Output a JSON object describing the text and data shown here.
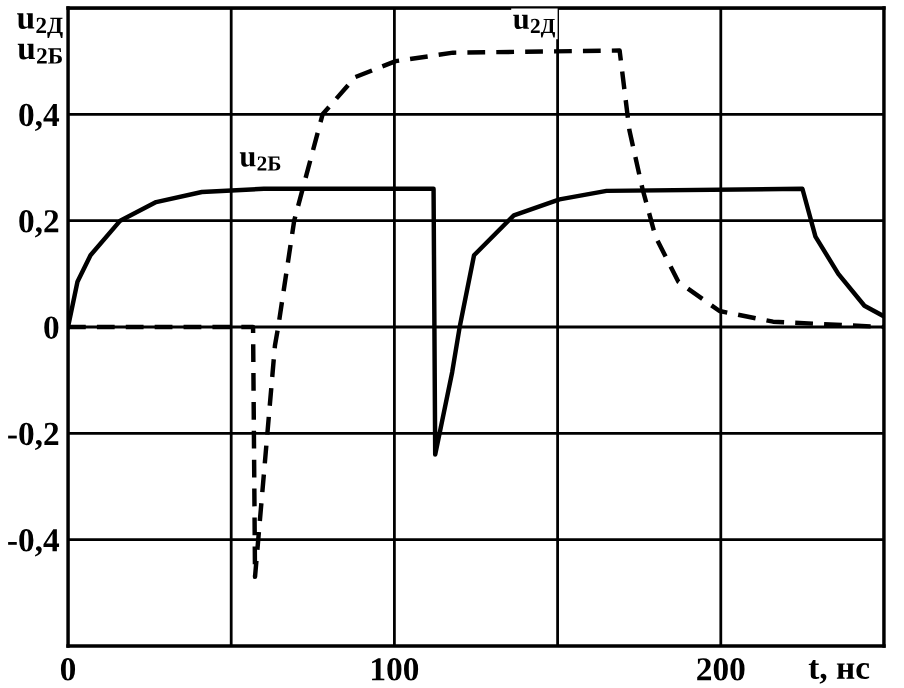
{
  "chart_data": {
    "type": "line",
    "xlabel": "t, нс",
    "ylabel": "u$_{2Д}$\nu$_{2Б}$",
    "xlim": [
      0,
      250
    ],
    "ylim": [
      -0.6,
      0.6
    ],
    "xticks": [
      0,
      {
        "value": 50,
        "label": null
      },
      100,
      {
        "value": 150,
        "label": null
      },
      200,
      {
        "value": 250,
        "label": null
      }
    ],
    "yticks": [
      {
        "value": -0.4,
        "label": "-0,4"
      },
      {
        "value": -0.2,
        "label": "-0,2"
      },
      0,
      {
        "value": 0.2,
        "label": "0,2"
      },
      {
        "value": 0.4,
        "label": "0,4"
      },
      {
        "value": 0.6,
        "label": null
      }
    ],
    "grid": true,
    "legend": false,
    "series": [
      {
        "color": "#000000",
        "line_style": "solid",
        "x": [
          0,
          2.9,
          6.9,
          16,
          27,
          41,
          60,
          112,
          112.5,
          117.7,
          120,
          124.4,
          136.6,
          150.6,
          165,
          225,
          229,
          236,
          244,
          250
        ],
        "values": [
          0,
          0.085,
          0.135,
          0.2,
          0.235,
          0.254,
          0.26,
          0.26,
          -0.24,
          -0.085,
          0,
          0.135,
          0.21,
          0.24,
          0.256,
          0.26,
          0.17,
          0.1,
          0.04,
          0.02
        ]
      },
      {
        "color": "#000000",
        "line_style": "dashed",
        "x": [
          0,
          56.7,
          57.3,
          63.4,
          64.4,
          69.3,
          78,
          88,
          100.4,
          118,
          169,
          172,
          176,
          180,
          187,
          199.6,
          216,
          250
        ],
        "values": [
          0,
          0,
          -0.47,
          -0.035,
          0,
          0.2,
          0.4,
          0.47,
          0.5,
          0.516,
          0.52,
          0.37,
          0.26,
          0.17,
          0.085,
          0.03,
          0.01,
          0
        ]
      }
    ],
    "annotations": [
      "u$_{2Б}$",
      "u$_{2Д}$"
    ]
  }
}
